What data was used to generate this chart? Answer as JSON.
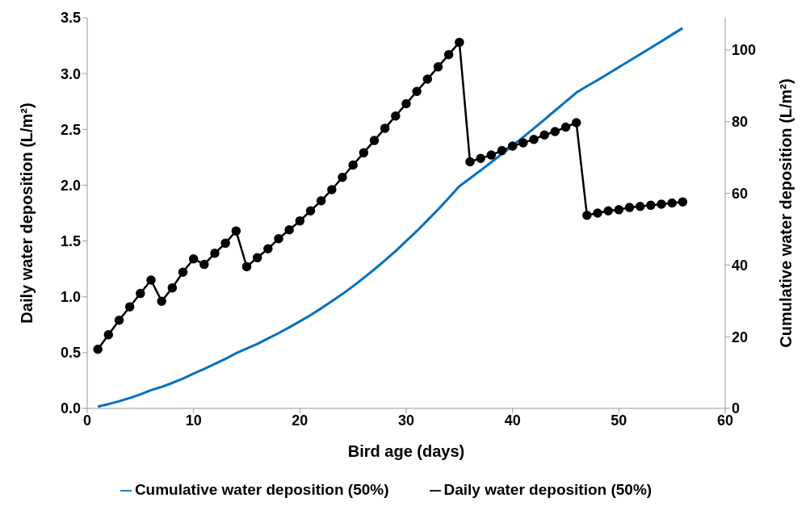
{
  "chart_data": {
    "type": "line",
    "xlabel": "Bird age (days)",
    "ylabel": "Daily water deposition (L/m²)",
    "y2label": "Cumulative water deposition (L/m²)",
    "x": [
      1,
      2,
      3,
      4,
      5,
      6,
      7,
      8,
      9,
      10,
      11,
      12,
      13,
      14,
      15,
      16,
      17,
      18,
      19,
      20,
      21,
      22,
      23,
      24,
      25,
      26,
      27,
      28,
      29,
      30,
      31,
      32,
      33,
      34,
      35,
      36,
      37,
      38,
      39,
      40,
      41,
      42,
      43,
      44,
      45,
      46,
      47,
      48,
      49,
      50,
      51,
      52,
      53,
      54,
      55,
      56
    ],
    "series": [
      {
        "name": "Daily water deposition (50%)",
        "color": "#000000",
        "marker": "circle",
        "values": [
          0.53,
          0.66,
          0.79,
          0.91,
          1.03,
          1.15,
          0.96,
          1.08,
          1.22,
          1.34,
          1.29,
          1.39,
          1.48,
          1.59,
          1.27,
          1.35,
          1.43,
          1.52,
          1.6,
          1.68,
          1.77,
          1.86,
          1.96,
          2.07,
          2.18,
          2.29,
          2.4,
          2.51,
          2.62,
          2.73,
          2.84,
          2.95,
          3.06,
          3.17,
          3.28,
          2.21,
          2.24,
          2.27,
          2.31,
          2.35,
          2.38,
          2.41,
          2.45,
          2.48,
          2.52,
          2.56,
          1.73,
          1.75,
          1.77,
          1.78,
          1.8,
          1.81,
          1.82,
          1.83,
          1.84,
          1.85
        ]
      },
      {
        "name": "Cumulative water deposition (50%)",
        "color": "#0070c0",
        "marker": "none",
        "axis": "y2",
        "values": [
          0.5,
          1.2,
          2.0,
          2.9,
          3.9,
          5.1,
          6.0,
          7.1,
          8.3,
          9.7,
          11.0,
          12.4,
          13.8,
          15.4,
          16.7,
          18.0,
          19.5,
          21.0,
          22.6,
          24.3,
          26.0,
          27.9,
          29.9,
          31.9,
          34.1,
          36.4,
          38.8,
          41.3,
          43.9,
          46.7,
          49.5,
          52.5,
          55.5,
          58.7,
          62.0,
          64.2,
          66.4,
          68.7,
          71.0,
          73.3,
          75.7,
          78.1,
          80.6,
          83.1,
          85.6,
          88.1,
          89.9,
          91.6,
          93.4,
          95.2,
          97.0,
          98.8,
          100.6,
          102.4,
          104.3,
          106.1
        ]
      }
    ],
    "xlim": [
      0,
      60
    ],
    "xticks": [
      0,
      10,
      20,
      30,
      40,
      50,
      60
    ],
    "ylim": [
      0,
      3.5
    ],
    "yticks": [
      {
        "value": 0,
        "label": "0.0"
      },
      {
        "value": 0.5,
        "label": "0.5"
      },
      {
        "value": 1,
        "label": "1.0"
      },
      {
        "value": 1.5,
        "label": "1.5"
      },
      {
        "value": 2,
        "label": "2.0"
      },
      {
        "value": 2.5,
        "label": "2.5"
      },
      {
        "value": 3,
        "label": "3.0"
      },
      {
        "value": 3.5,
        "label": "3.5"
      }
    ],
    "y2lim": [
      0,
      109
    ],
    "y2ticks": [
      0,
      20,
      40,
      60,
      80,
      100
    ],
    "grid": false,
    "legend": "bottom",
    "line_style": "solid"
  }
}
